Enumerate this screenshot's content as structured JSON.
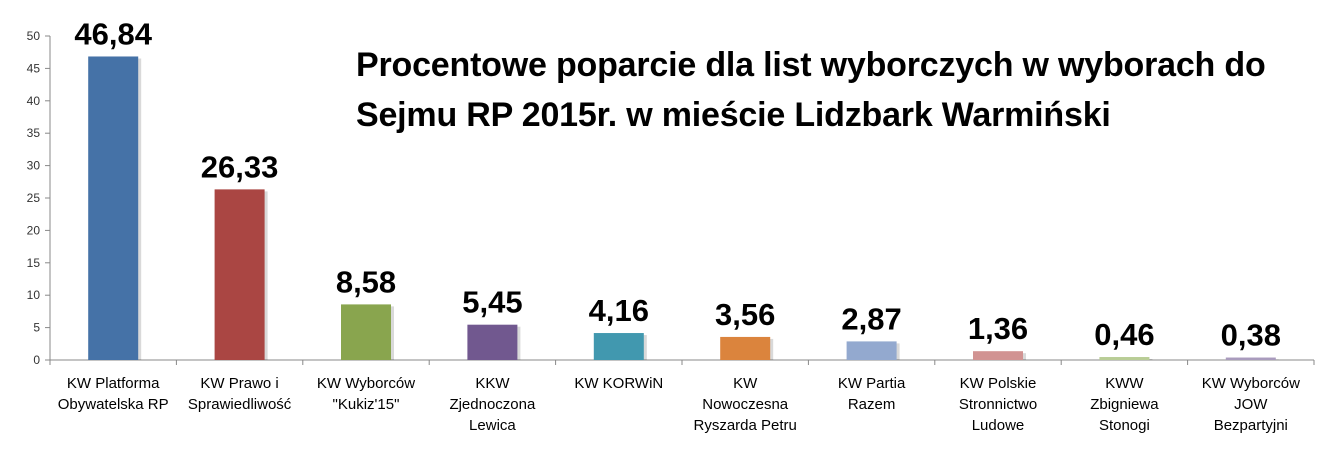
{
  "chart_data": {
    "type": "bar",
    "title": "Procentowe poparcie dla list wyborczych w wyborach do Sejmu RP 2015r. w mieście  Lidzbark Warmiński",
    "title_lines": [
      "Procentowe poparcie dla list wyborczych w wyborach do",
      "Sejmu RP 2015r. w mieście  Lidzbark Warmiński"
    ],
    "xlabel": "",
    "ylabel": "",
    "ylim": [
      0,
      50
    ],
    "yticks": [
      0,
      5,
      10,
      15,
      20,
      25,
      30,
      35,
      40,
      45,
      50
    ],
    "grid": false,
    "legend": "none",
    "categories": [
      [
        "KW Platforma",
        "Obywatelska RP"
      ],
      [
        "KW Prawo i",
        "Sprawiedliwość"
      ],
      [
        "KW Wyborców",
        "\"Kukiz'15\""
      ],
      [
        "KKW",
        "Zjednoczona",
        "Lewica"
      ],
      [
        "KW KORWiN"
      ],
      [
        "KW",
        "Nowoczesna",
        "Ryszarda Petru"
      ],
      [
        "KW Partia",
        "Razem"
      ],
      [
        "KW Polskie",
        "Stronnictwo",
        "Ludowe"
      ],
      [
        "KWW",
        "Zbigniewa",
        "Stonogi"
      ],
      [
        "KW Wyborców",
        "JOW",
        "Bezpartyjni"
      ]
    ],
    "values": [
      46.84,
      26.33,
      8.58,
      5.45,
      4.16,
      3.56,
      2.87,
      1.36,
      0.46,
      0.38
    ],
    "value_labels": [
      "46,84",
      "26,33",
      "8,58",
      "5,45",
      "4,16",
      "3,56",
      "2,87",
      "1,36",
      "0,46",
      "0,38"
    ],
    "colors": [
      "#4572A7",
      "#AA4643",
      "#89A54E",
      "#71588F",
      "#4198AF",
      "#DB843D",
      "#93A9CF",
      "#D19392",
      "#B9CD96",
      "#A99BBD"
    ]
  }
}
